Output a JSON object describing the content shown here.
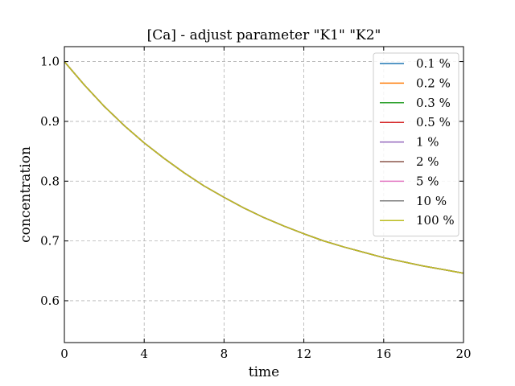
{
  "chart_data": {
    "type": "line",
    "title": "[Ca] - adjust parameter \"K1\" \"K2\"",
    "xlabel": "time",
    "ylabel": "concentration",
    "xlim": [
      0,
      20
    ],
    "ylim": [
      0.53,
      1.025
    ],
    "xticks": [
      0,
      4,
      8,
      12,
      16,
      20
    ],
    "yticks": [
      0.6,
      0.7,
      0.8,
      0.9,
      1.0
    ],
    "xtick_labels": [
      "0",
      "4",
      "8",
      "12",
      "16",
      "20"
    ],
    "ytick_labels": [
      "0.6",
      "0.7",
      "0.8",
      "0.9",
      "1.0"
    ],
    "grid": true,
    "legend_position": "top-right",
    "x": [
      0,
      1,
      2,
      3,
      4,
      5,
      6,
      7,
      8,
      9,
      10,
      11,
      12,
      13,
      14,
      15,
      16,
      17,
      18,
      19,
      20
    ],
    "series": [
      {
        "name": "0.1 %",
        "color": "#1f77b4",
        "values": [
          1.0,
          0.961,
          0.925,
          0.893,
          0.864,
          0.838,
          0.814,
          0.792,
          0.773,
          0.755,
          0.739,
          0.725,
          0.712,
          0.7,
          0.69,
          0.681,
          0.672,
          0.665,
          0.658,
          0.652,
          0.646
        ]
      },
      {
        "name": "0.2 %",
        "color": "#ff7f0e",
        "values": [
          1.0,
          0.961,
          0.925,
          0.893,
          0.864,
          0.838,
          0.814,
          0.792,
          0.773,
          0.755,
          0.739,
          0.725,
          0.712,
          0.7,
          0.69,
          0.681,
          0.672,
          0.665,
          0.658,
          0.652,
          0.646
        ]
      },
      {
        "name": "0.3 %",
        "color": "#2ca02c",
        "values": [
          1.0,
          0.961,
          0.925,
          0.893,
          0.864,
          0.838,
          0.814,
          0.792,
          0.773,
          0.755,
          0.739,
          0.725,
          0.712,
          0.7,
          0.69,
          0.681,
          0.672,
          0.665,
          0.658,
          0.652,
          0.646
        ]
      },
      {
        "name": "0.5 %",
        "color": "#d62728",
        "values": [
          1.0,
          0.961,
          0.925,
          0.893,
          0.864,
          0.838,
          0.814,
          0.792,
          0.773,
          0.755,
          0.739,
          0.725,
          0.712,
          0.7,
          0.69,
          0.681,
          0.672,
          0.665,
          0.658,
          0.652,
          0.646
        ]
      },
      {
        "name": "1 %",
        "color": "#9467bd",
        "values": [
          1.0,
          0.961,
          0.925,
          0.893,
          0.864,
          0.838,
          0.814,
          0.792,
          0.773,
          0.755,
          0.739,
          0.725,
          0.712,
          0.7,
          0.69,
          0.681,
          0.672,
          0.665,
          0.658,
          0.652,
          0.646
        ]
      },
      {
        "name": "2 %",
        "color": "#8c564b",
        "values": [
          1.0,
          0.961,
          0.925,
          0.893,
          0.864,
          0.838,
          0.814,
          0.792,
          0.773,
          0.755,
          0.739,
          0.725,
          0.712,
          0.7,
          0.69,
          0.681,
          0.672,
          0.665,
          0.658,
          0.652,
          0.646
        ]
      },
      {
        "name": "5 %",
        "color": "#e377c2",
        "values": [
          1.0,
          0.961,
          0.925,
          0.893,
          0.864,
          0.838,
          0.814,
          0.792,
          0.773,
          0.755,
          0.739,
          0.725,
          0.712,
          0.7,
          0.69,
          0.681,
          0.672,
          0.665,
          0.658,
          0.652,
          0.646
        ]
      },
      {
        "name": "10 %",
        "color": "#7f7f7f",
        "values": [
          1.0,
          0.961,
          0.925,
          0.893,
          0.864,
          0.838,
          0.814,
          0.792,
          0.773,
          0.755,
          0.739,
          0.725,
          0.712,
          0.7,
          0.69,
          0.681,
          0.672,
          0.665,
          0.658,
          0.652,
          0.646
        ]
      },
      {
        "name": "100 %",
        "color": "#bcbd22",
        "values": [
          1.0,
          0.961,
          0.925,
          0.893,
          0.864,
          0.838,
          0.814,
          0.792,
          0.773,
          0.755,
          0.739,
          0.725,
          0.712,
          0.7,
          0.69,
          0.681,
          0.672,
          0.665,
          0.658,
          0.652,
          0.646
        ]
      }
    ]
  }
}
